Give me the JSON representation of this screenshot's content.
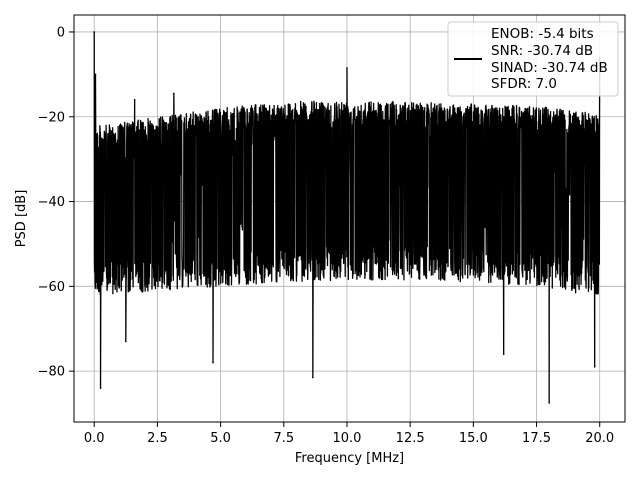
{
  "chart_data": {
    "type": "line",
    "title": "",
    "xlabel": "Frequency [MHz]",
    "ylabel": "PSD [dB]",
    "xlim": [
      -0.8,
      21.0
    ],
    "ylim": [
      -92,
      4
    ],
    "x_ticks": [
      0.0,
      2.5,
      5.0,
      7.5,
      10.0,
      12.5,
      15.0,
      17.5,
      20.0
    ],
    "x_tick_labels": [
      "0.0",
      "2.5",
      "5.0",
      "7.5",
      "10.0",
      "12.5",
      "15.0",
      "17.5",
      "20.0"
    ],
    "y_ticks": [
      0,
      -20,
      -40,
      -60,
      -80
    ],
    "y_tick_labels": [
      "0",
      "−20",
      "−40",
      "−60",
      "−80"
    ],
    "grid": true,
    "legend_placement": "top-right",
    "series": [
      {
        "color": "#000000",
        "x_range": [
          0.0,
          20.0
        ],
        "envelope": {
          "x": [
            0.0,
            0.2,
            0.5,
            1.0,
            2.5,
            5.0,
            7.5,
            10.0,
            12.5,
            15.0,
            17.5,
            19.5,
            20.0
          ],
          "upper": [
            -22,
            -22,
            -22,
            -21.5,
            -20,
            -18,
            -16.5,
            -16,
            -16.5,
            -17,
            -17.5,
            -19,
            -19
          ],
          "lower": [
            -62,
            -62,
            -62,
            -62,
            -61,
            -60,
            -59,
            -58.5,
            -58.5,
            -59,
            -60,
            -62,
            -62
          ]
        },
        "peaks": [
          {
            "x": 0.0,
            "y": 0
          },
          {
            "x": 0.05,
            "y": -10
          },
          {
            "x": 1.6,
            "y": -16
          },
          {
            "x": 3.15,
            "y": -14.5
          },
          {
            "x": 10.0,
            "y": -8.5
          },
          {
            "x": 20.0,
            "y": -6
          }
        ],
        "dips": [
          {
            "x": 0.25,
            "y": -84
          },
          {
            "x": 1.25,
            "y": -73
          },
          {
            "x": 4.7,
            "y": -78
          },
          {
            "x": 8.65,
            "y": -81.5
          },
          {
            "x": 16.2,
            "y": -76
          },
          {
            "x": 18.0,
            "y": -87.5
          },
          {
            "x": 19.8,
            "y": -79
          }
        ]
      }
    ],
    "legend": {
      "entries": [
        "ENOB: -5.4 bits",
        "SNR: -30.74 dB",
        "SINAD: -30.74 dB",
        "SFDR: 7.0"
      ]
    }
  }
}
